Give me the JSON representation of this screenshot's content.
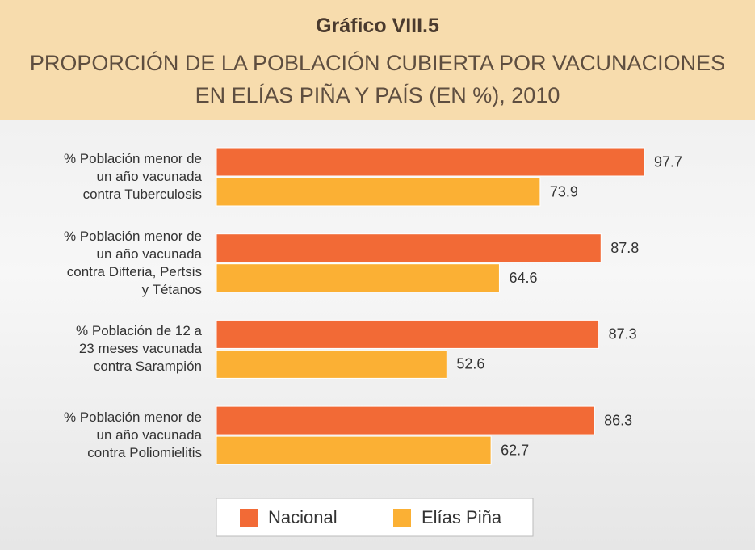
{
  "chart_data": {
    "type": "hbar",
    "title": "Gráfico VIII.5",
    "subtitle": "PROPORCIÓN DE LA POBLACIÓN CUBIERTA POR VACUNACIONES\nEN ELÍAS PIÑA Y PAÍS (EN %), 2010",
    "categories": [
      "% Población menor de\nun año vacunada\ncontra Tuberculosis",
      "% Población menor de\nun año vacunada\ncontra Difteria, Pertsis\ny Tétanos",
      "% Población de 12 a\n23 meses vacunada\ncontra Sarampión",
      "% Población menor de\nun año vacunada\ncontra Poliomielitis"
    ],
    "series": [
      {
        "name": "Nacional",
        "color": "#f26a36",
        "values": [
          97.7,
          87.8,
          87.3,
          86.3
        ]
      },
      {
        "name": "Elías Piña",
        "color": "#fbb034",
        "values": [
          73.9,
          64.6,
          52.6,
          62.7
        ]
      }
    ],
    "legend": "bottom"
  }
}
